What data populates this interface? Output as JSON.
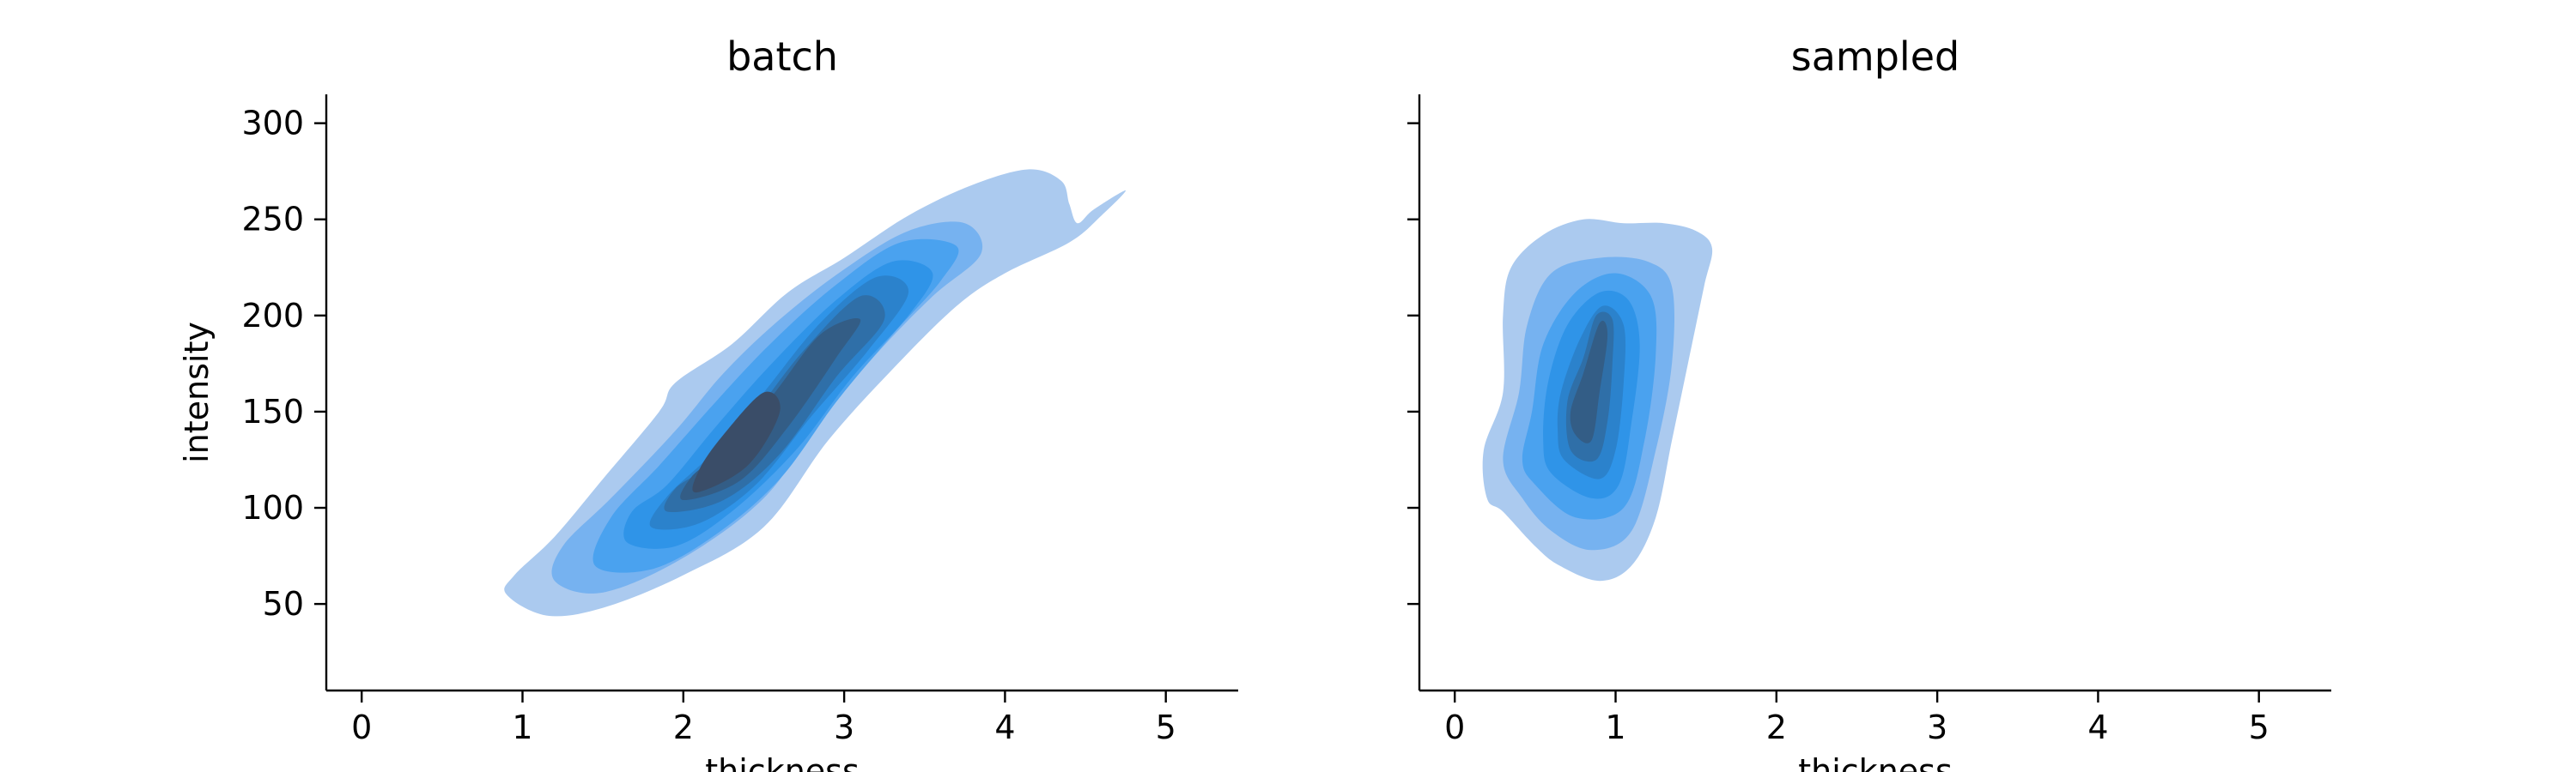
{
  "chart_data": [
    {
      "type": "kde-contour",
      "title": "batch",
      "xlabel": "thickness",
      "ylabel": "intensity",
      "xlim": [
        -0.22,
        5.45
      ],
      "ylim": [
        5,
        315
      ],
      "xticks": [
        0,
        1,
        2,
        3,
        4,
        5
      ],
      "yticks": [
        50,
        100,
        150,
        200,
        250,
        300
      ],
      "color": "#2b8fe8",
      "density_peak": {
        "x": 2.1,
        "y": 120
      },
      "levels": [
        {
          "level": 1,
          "outline": [
            [
              0.9,
              55
            ],
            [
              1.15,
              44
            ],
            [
              1.5,
              48
            ],
            [
              2.0,
              65
            ],
            [
              2.5,
              90
            ],
            [
              2.9,
              135
            ],
            [
              3.3,
              172
            ],
            [
              3.7,
              205
            ],
            [
              4.0,
              222
            ],
            [
              4.4,
              238
            ],
            [
              4.6,
              252
            ],
            [
              4.75,
              265
            ],
            [
              4.55,
              255
            ],
            [
              4.45,
              248
            ],
            [
              4.4,
              258
            ],
            [
              4.35,
              270
            ],
            [
              4.15,
              276
            ],
            [
              3.8,
              268
            ],
            [
              3.4,
              252
            ],
            [
              3.0,
              230
            ],
            [
              2.65,
              212
            ],
            [
              2.3,
              185
            ],
            [
              1.95,
              165
            ],
            [
              1.85,
              150
            ],
            [
              1.5,
              115
            ],
            [
              1.2,
              85
            ],
            [
              0.95,
              65
            ]
          ]
        },
        {
          "level": 2,
          "outline": [
            [
              1.2,
              62
            ],
            [
              1.5,
              56
            ],
            [
              2.0,
              74
            ],
            [
              2.5,
              105
            ],
            [
              2.85,
              145
            ],
            [
              3.2,
              180
            ],
            [
              3.55,
              210
            ],
            [
              3.85,
              232
            ],
            [
              3.75,
              248
            ],
            [
              3.4,
              244
            ],
            [
              3.0,
              224
            ],
            [
              2.6,
              198
            ],
            [
              2.25,
              170
            ],
            [
              1.95,
              140
            ],
            [
              1.55,
              105
            ],
            [
              1.25,
              80
            ]
          ]
        },
        {
          "level": 3,
          "outline": [
            [
              1.45,
              70
            ],
            [
              1.8,
              68
            ],
            [
              2.2,
              86
            ],
            [
              2.6,
              115
            ],
            [
              2.95,
              155
            ],
            [
              3.3,
              190
            ],
            [
              3.6,
              218
            ],
            [
              3.7,
              236
            ],
            [
              3.35,
              238
            ],
            [
              2.95,
              216
            ],
            [
              2.55,
              186
            ],
            [
              2.2,
              155
            ],
            [
              1.85,
              122
            ],
            [
              1.55,
              95
            ]
          ]
        },
        {
          "level": 4,
          "outline": [
            [
              1.65,
              82
            ],
            [
              1.95,
              80
            ],
            [
              2.3,
              98
            ],
            [
              2.7,
              130
            ],
            [
              3.05,
              168
            ],
            [
              3.4,
              200
            ],
            [
              3.55,
              222
            ],
            [
              3.3,
              228
            ],
            [
              2.95,
              208
            ],
            [
              2.55,
              175
            ],
            [
              2.2,
              142
            ],
            [
              1.9,
              112
            ],
            [
              1.68,
              98
            ]
          ]
        },
        {
          "level": 5,
          "outline": [
            [
              1.8,
              90
            ],
            [
              2.1,
              92
            ],
            [
              2.45,
              112
            ],
            [
              2.8,
              148
            ],
            [
              3.15,
              182
            ],
            [
              3.4,
              212
            ],
            [
              3.2,
              220
            ],
            [
              2.85,
              196
            ],
            [
              2.5,
              160
            ],
            [
              2.2,
              130
            ],
            [
              1.9,
              106
            ]
          ]
        },
        {
          "level": 6,
          "outline": [
            [
              1.9,
              98
            ],
            [
              2.25,
              104
            ],
            [
              2.6,
              128
            ],
            [
              2.95,
              168
            ],
            [
              3.25,
              198
            ],
            [
              3.1,
              210
            ],
            [
              2.75,
              182
            ],
            [
              2.45,
              150
            ],
            [
              2.15,
              122
            ],
            [
              1.95,
              110
            ]
          ]
        },
        {
          "level": 7,
          "outline": [
            [
              2.0,
              104
            ],
            [
              2.35,
              114
            ],
            [
              2.65,
              142
            ],
            [
              2.95,
              178
            ],
            [
              3.1,
              198
            ],
            [
              2.85,
              190
            ],
            [
              2.55,
              158
            ],
            [
              2.25,
              130
            ],
            [
              2.05,
              116
            ]
          ]
        },
        {
          "level": 8,
          "outline": [
            [
              2.08,
              108
            ],
            [
              2.4,
              122
            ],
            [
              2.6,
              150
            ],
            [
              2.5,
              160
            ],
            [
              2.25,
              138
            ],
            [
              2.1,
              120
            ]
          ]
        }
      ]
    },
    {
      "type": "kde-contour",
      "title": "sampled",
      "xlabel": "thickness",
      "ylabel": "",
      "xlim": [
        -0.22,
        5.45
      ],
      "ylim": [
        5,
        315
      ],
      "xticks": [
        0,
        1,
        2,
        3,
        4,
        5
      ],
      "yticks": [
        50,
        100,
        150,
        200,
        250,
        300
      ],
      "color": "#2b8fe8",
      "density_peak": {
        "x": 0.8,
        "y": 150
      },
      "levels": [
        {
          "level": 1,
          "outline": [
            [
              0.3,
              98
            ],
            [
              0.5,
              80
            ],
            [
              0.65,
              70
            ],
            [
              0.9,
              62
            ],
            [
              1.1,
              70
            ],
            [
              1.25,
              95
            ],
            [
              1.35,
              135
            ],
            [
              1.45,
              175
            ],
            [
              1.55,
              215
            ],
            [
              1.6,
              235
            ],
            [
              1.5,
              244
            ],
            [
              1.3,
              248
            ],
            [
              1.05,
              248
            ],
            [
              0.8,
              250
            ],
            [
              0.55,
              242
            ],
            [
              0.35,
              225
            ],
            [
              0.3,
              200
            ],
            [
              0.3,
              160
            ],
            [
              0.18,
              130
            ],
            [
              0.2,
              105
            ]
          ]
        },
        {
          "level": 2,
          "outline": [
            [
              0.42,
              105
            ],
            [
              0.6,
              88
            ],
            [
              0.85,
              78
            ],
            [
              1.1,
              88
            ],
            [
              1.25,
              130
            ],
            [
              1.35,
              175
            ],
            [
              1.35,
              215
            ],
            [
              1.2,
              228
            ],
            [
              0.9,
              230
            ],
            [
              0.6,
              222
            ],
            [
              0.45,
              195
            ],
            [
              0.4,
              160
            ],
            [
              0.3,
              125
            ]
          ]
        },
        {
          "level": 3,
          "outline": [
            [
              0.5,
              112
            ],
            [
              0.75,
              95
            ],
            [
              1.05,
              100
            ],
            [
              1.18,
              135
            ],
            [
              1.25,
              180
            ],
            [
              1.22,
              210
            ],
            [
              1.0,
              222
            ],
            [
              0.75,
              212
            ],
            [
              0.55,
              185
            ],
            [
              0.48,
              150
            ],
            [
              0.42,
              125
            ]
          ]
        },
        {
          "level": 4,
          "outline": [
            [
              0.6,
              118
            ],
            [
              0.85,
              105
            ],
            [
              1.02,
              112
            ],
            [
              1.1,
              145
            ],
            [
              1.15,
              185
            ],
            [
              1.08,
              208
            ],
            [
              0.9,
              212
            ],
            [
              0.7,
              195
            ],
            [
              0.58,
              165
            ],
            [
              0.55,
              135
            ]
          ]
        },
        {
          "level": 5,
          "outline": [
            [
              0.68,
              125
            ],
            [
              0.9,
              115
            ],
            [
              1.0,
              130
            ],
            [
              1.05,
              165
            ],
            [
              1.05,
              195
            ],
            [
              0.92,
              205
            ],
            [
              0.78,
              188
            ],
            [
              0.66,
              160
            ],
            [
              0.64,
              140
            ]
          ]
        },
        {
          "level": 6,
          "outline": [
            [
              0.72,
              130
            ],
            [
              0.88,
              125
            ],
            [
              0.95,
              145
            ],
            [
              0.98,
              175
            ],
            [
              0.98,
              198
            ],
            [
              0.88,
              200
            ],
            [
              0.8,
              178
            ],
            [
              0.7,
              155
            ]
          ]
        },
        {
          "level": 7,
          "outline": [
            [
              0.75,
              138
            ],
            [
              0.85,
              135
            ],
            [
              0.9,
              160
            ],
            [
              0.95,
              190
            ],
            [
              0.9,
              196
            ],
            [
              0.8,
              170
            ],
            [
              0.72,
              150
            ]
          ]
        }
      ]
    }
  ]
}
